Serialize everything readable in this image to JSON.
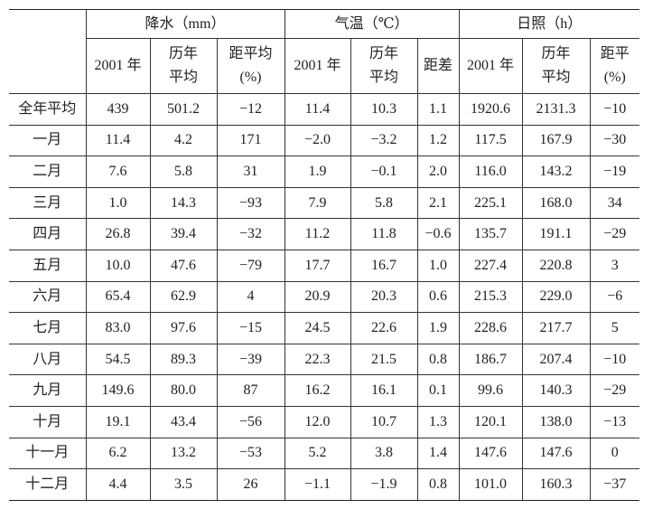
{
  "table": {
    "groups": [
      "降水（mm）",
      "气温（℃）",
      "日照（h）"
    ],
    "subheaders": [
      [
        "2001 年"
      ],
      [
        "历年",
        "平均"
      ],
      [
        "距平均",
        "(%)"
      ],
      [
        "2001 年"
      ],
      [
        "历年",
        "平均"
      ],
      [
        "距差"
      ],
      [
        "2001 年"
      ],
      [
        "历年",
        "平均"
      ],
      [
        "距平",
        "(%)"
      ]
    ],
    "rows": [
      [
        "全年平均",
        "439",
        "501.2",
        "−12",
        "11.4",
        "10.3",
        "1.1",
        "1920.6",
        "2131.3",
        "−10"
      ],
      [
        "一月",
        "11.4",
        "4.2",
        "171",
        "−2.0",
        "−3.2",
        "1.2",
        "117.5",
        "167.9",
        "−30"
      ],
      [
        "二月",
        "7.6",
        "5.8",
        "31",
        "1.9",
        "−0.1",
        "2.0",
        "116.0",
        "143.2",
        "−19"
      ],
      [
        "三月",
        "1.0",
        "14.3",
        "−93",
        "7.9",
        "5.8",
        "2.1",
        "225.1",
        "168.0",
        "34"
      ],
      [
        "四月",
        "26.8",
        "39.4",
        "−32",
        "11.2",
        "11.8",
        "−0.6",
        "135.7",
        "191.1",
        "−29"
      ],
      [
        "五月",
        "10.0",
        "47.6",
        "−79",
        "17.7",
        "16.7",
        "1.0",
        "227.4",
        "220.8",
        "3"
      ],
      [
        "六月",
        "65.4",
        "62.9",
        "4",
        "20.9",
        "20.3",
        "0.6",
        "215.3",
        "229.0",
        "−6"
      ],
      [
        "七月",
        "83.0",
        "97.6",
        "−15",
        "24.5",
        "22.6",
        "1.9",
        "228.6",
        "217.7",
        "5"
      ],
      [
        "八月",
        "54.5",
        "89.3",
        "−39",
        "22.3",
        "21.5",
        "0.8",
        "186.7",
        "207.4",
        "−10"
      ],
      [
        "九月",
        "149.6",
        "80.0",
        "87",
        "16.2",
        "16.1",
        "0.1",
        "99.6",
        "140.3",
        "−29"
      ],
      [
        "十月",
        "19.1",
        "43.4",
        "−56",
        "12.0",
        "10.7",
        "1.3",
        "120.1",
        "138.0",
        "−13"
      ],
      [
        "十一月",
        "6.2",
        "13.2",
        "−53",
        "5.2",
        "3.8",
        "1.4",
        "147.6",
        "147.6",
        "0"
      ],
      [
        "十二月",
        "4.4",
        "3.5",
        "26",
        "−1.1",
        "−1.9",
        "0.8",
        "101.0",
        "160.3",
        "−37"
      ]
    ]
  }
}
